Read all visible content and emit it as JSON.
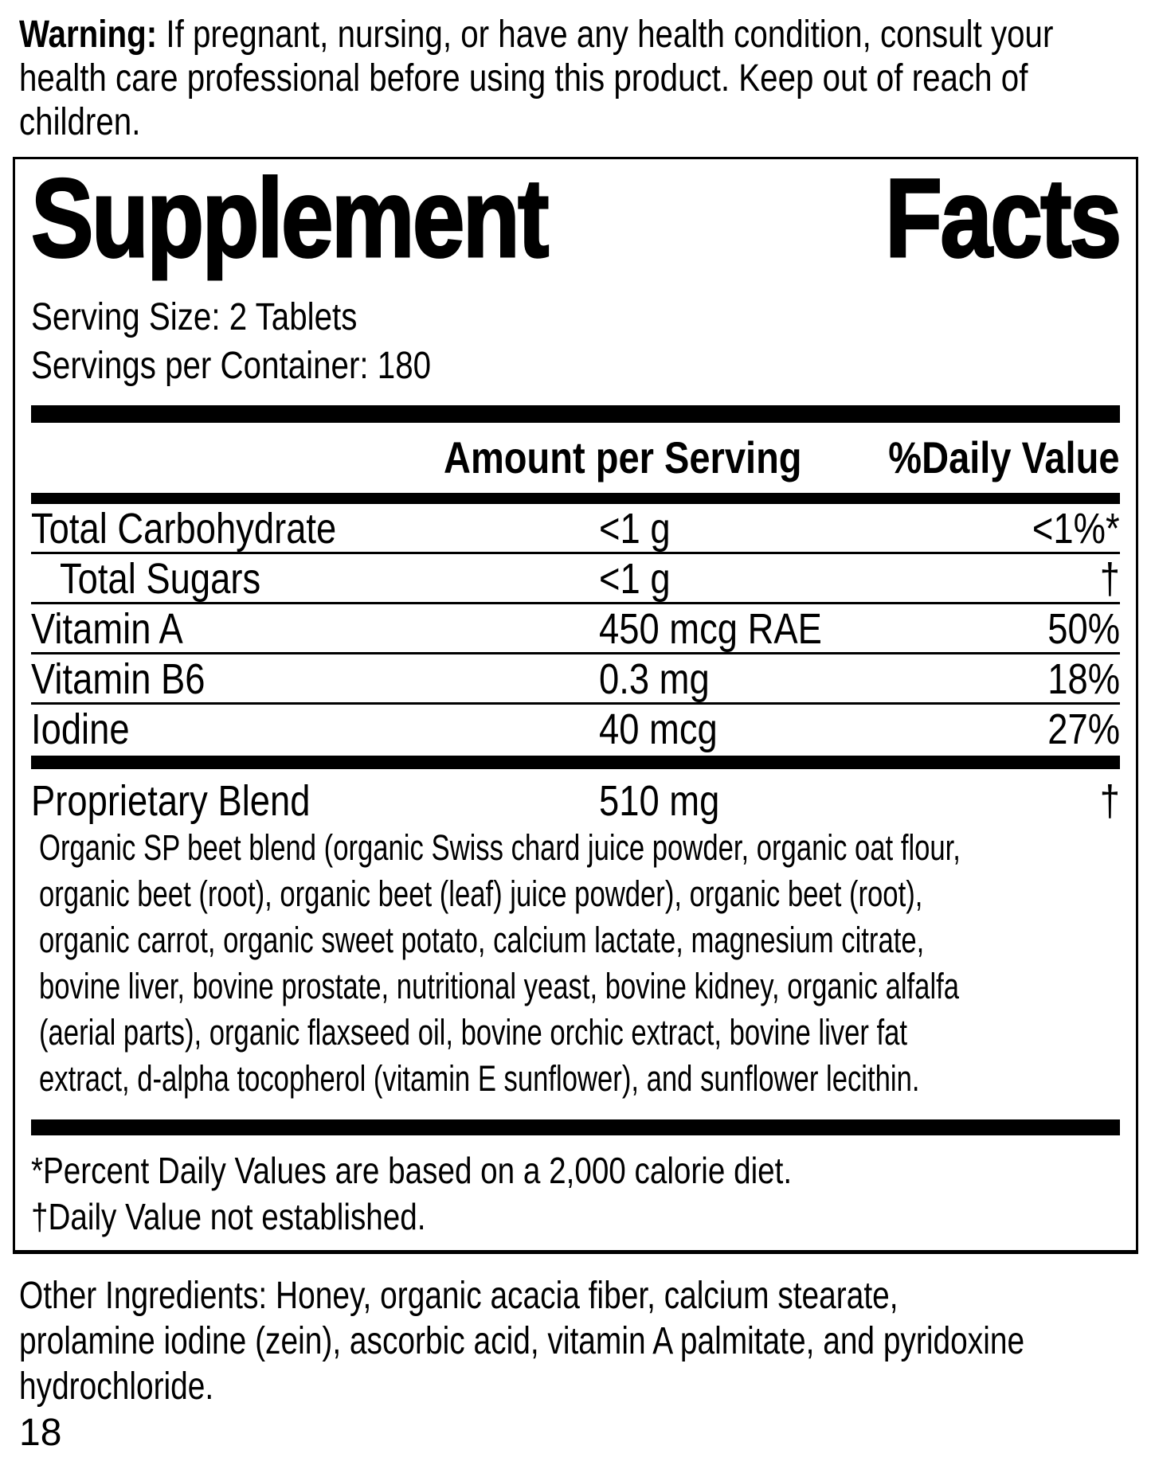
{
  "warning": {
    "label": "Warning:",
    "text": " If pregnant, nursing, or have any health condition, consult your\nhealth care professional before using this product. Keep out of reach of\nchildren."
  },
  "supplement_facts": {
    "title_words": [
      "Supplement",
      "Facts"
    ],
    "serving_size": "Serving Size: 2 Tablets",
    "servings_per_container": "Servings per Container: 180",
    "columns": {
      "amount": "Amount per Serving",
      "daily_value": "%Daily Value"
    },
    "rows": [
      {
        "name": "Total Carbohydrate",
        "amount": "<1 g",
        "daily_value": "<1%*"
      },
      {
        "name": "Total Sugars",
        "amount": "<1 g",
        "daily_value": "†"
      },
      {
        "name": "Vitamin A",
        "amount": "450 mcg RAE",
        "daily_value": "50%"
      },
      {
        "name": "Vitamin B6",
        "amount": "0.3 mg",
        "daily_value": "18%"
      },
      {
        "name": "Iodine",
        "amount": "40 mcg",
        "daily_value": "27%"
      }
    ],
    "proprietary_blend": {
      "name": "Proprietary Blend",
      "amount": "510 mg",
      "daily_value": "†",
      "description": "Organic SP beet blend (organic Swiss chard juice powder, organic oat flour,\norganic beet (root), organic beet (leaf) juice powder), organic beet (root),\norganic carrot, organic sweet potato, calcium lactate, magnesium citrate,\nbovine liver, bovine prostate, nutritional yeast, bovine kidney, organic alfalfa\n(aerial parts), organic flaxseed oil, bovine orchic extract, bovine liver fat\nextract, d-alpha tocopherol (vitamin E sunflower), and sunflower lecithin."
    },
    "footnotes": [
      "*Percent Daily Values are based on a 2,000 calorie diet.",
      "†Daily Value not established."
    ]
  },
  "other_ingredients": "Other Ingredients: Honey, organic acacia fiber, calcium stearate,\nprolamine iodine (zein), ascorbic acid, vitamin A palmitate, and pyridoxine\nhydrochloride.",
  "page_number": "18",
  "colors": {
    "text": "#000000",
    "background": "#ffffff"
  }
}
